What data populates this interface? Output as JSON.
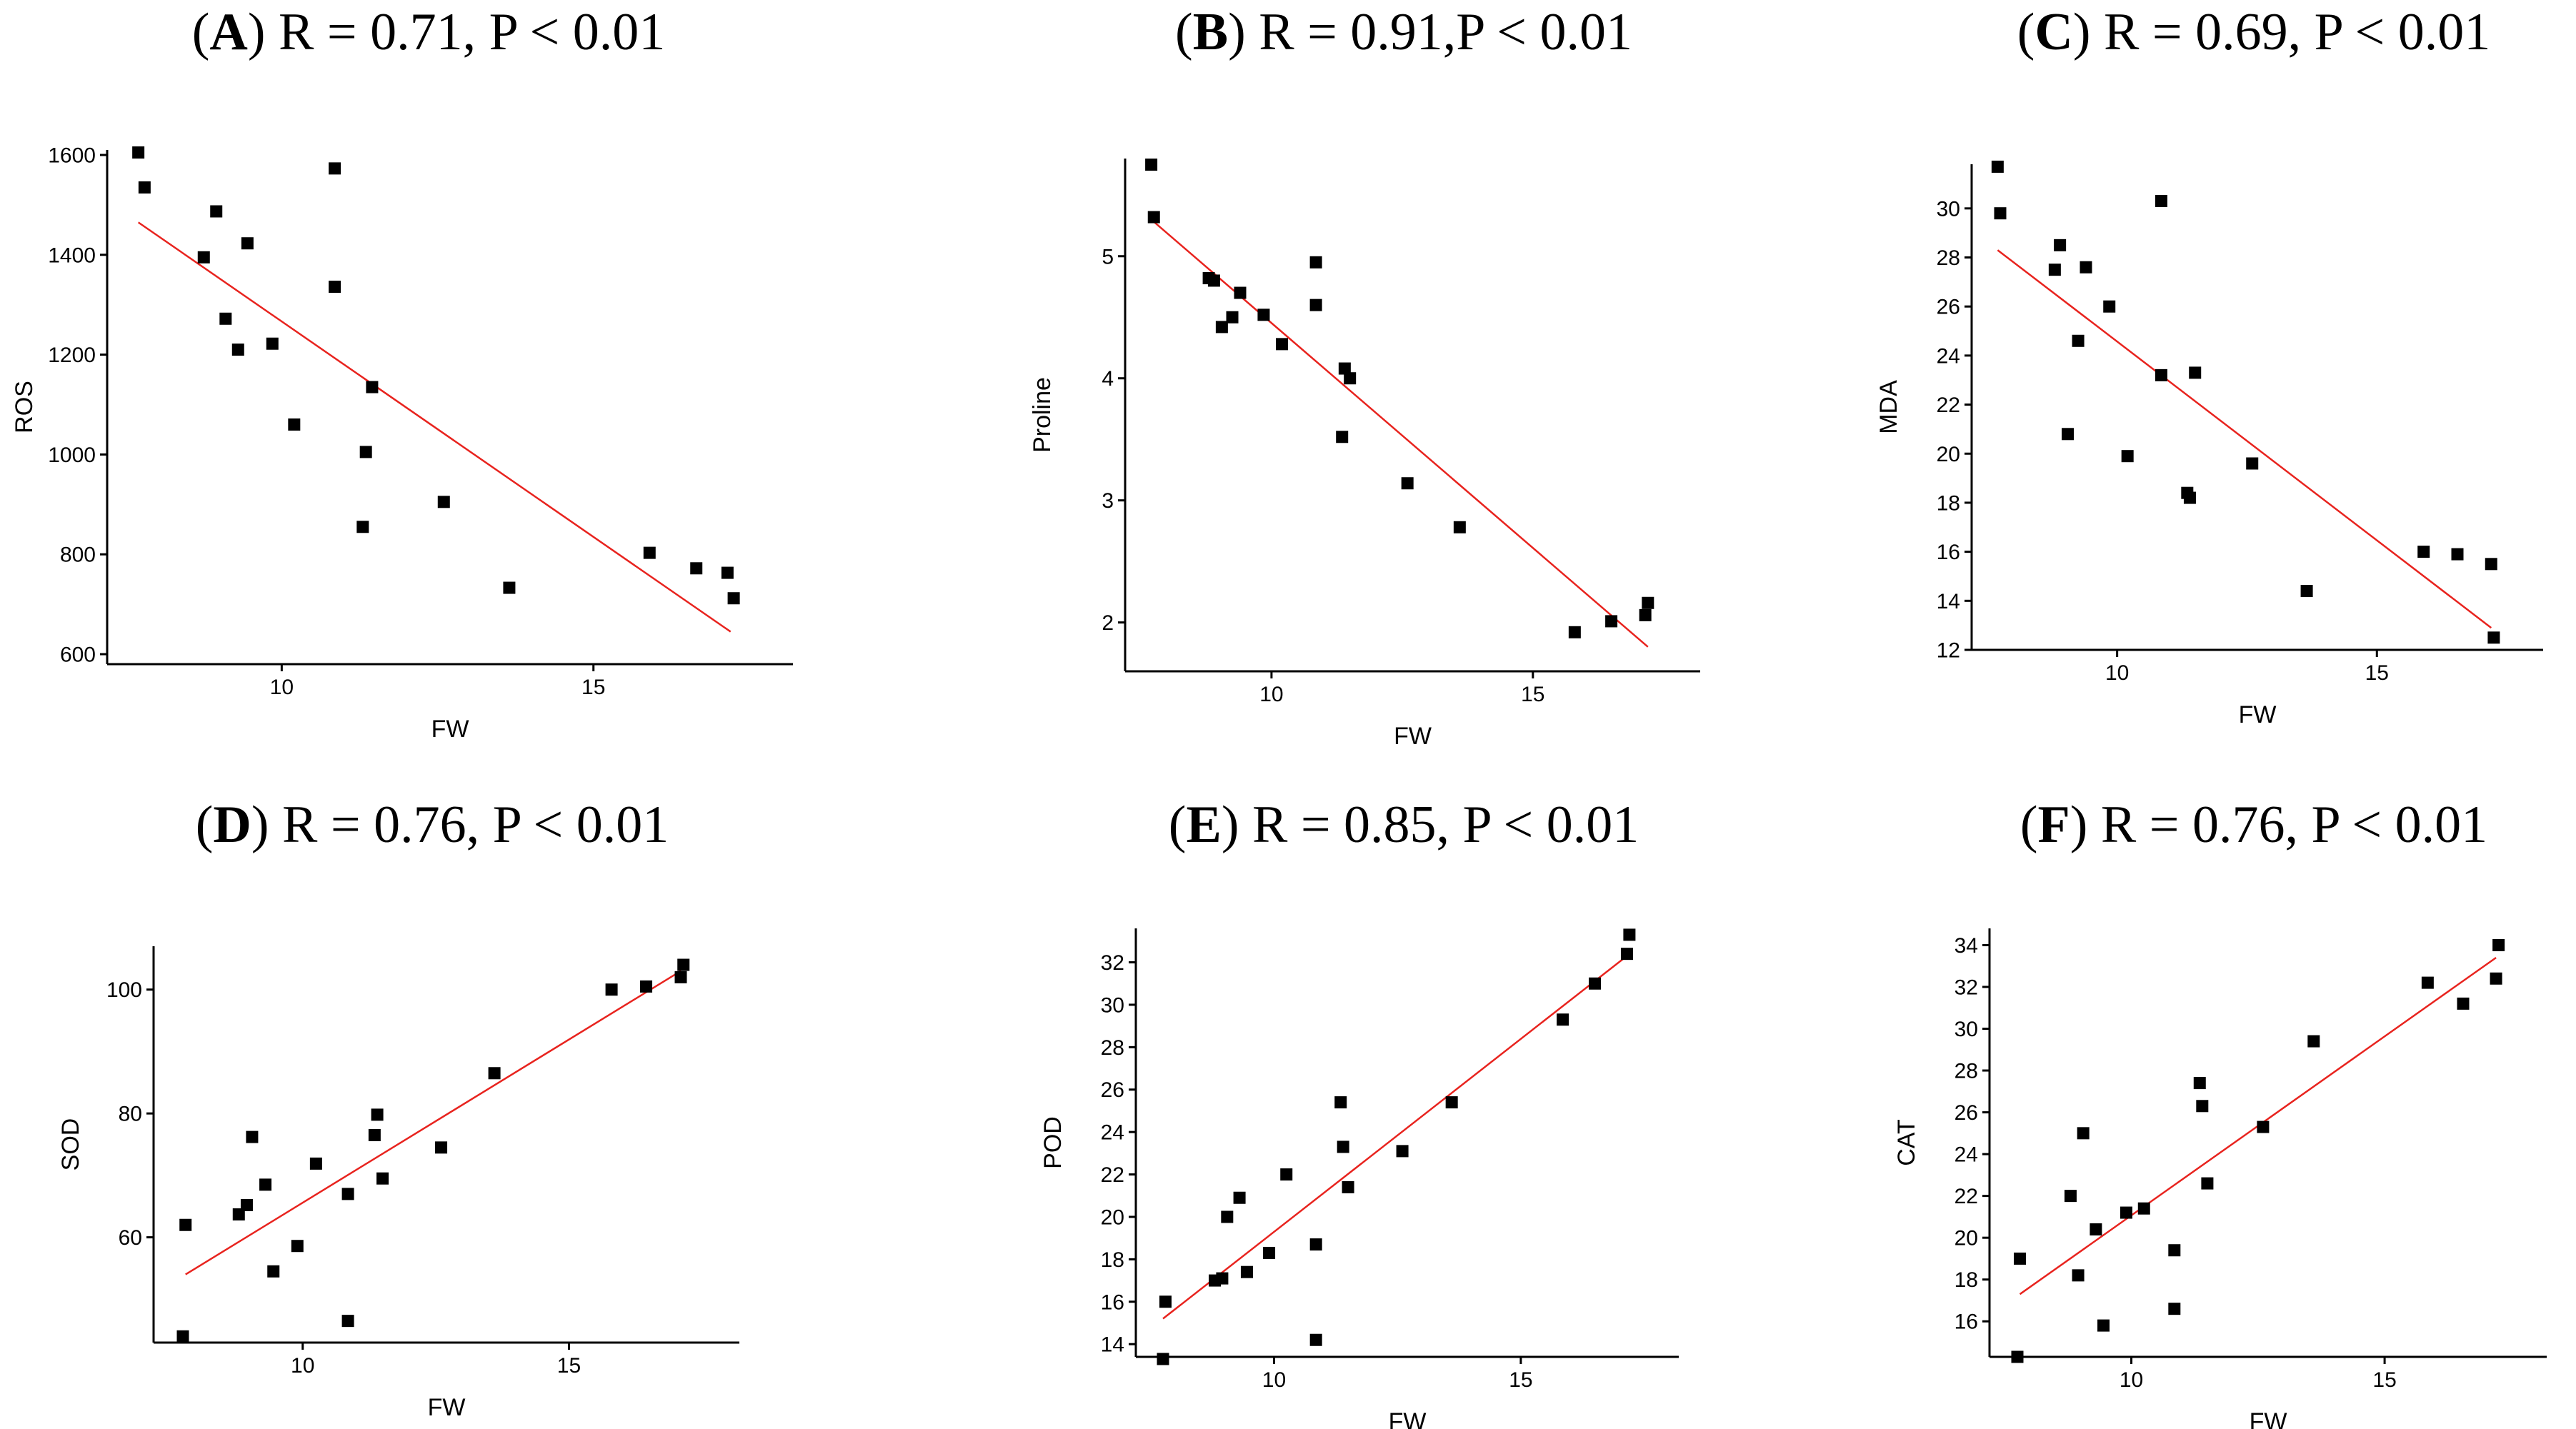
{
  "colors": {
    "point": "#000000",
    "fit": "#e8231e",
    "axis": "#000000"
  },
  "chart_data": [
    {
      "id": "A",
      "letter": "A",
      "stats": "R = 0.71, P < 0.01",
      "type": "scatter",
      "xlabel": "FW",
      "ylabel": "ROS",
      "xlim": [
        7.2,
        18.2
      ],
      "ylim": [
        580,
        1610
      ],
      "xticks": [
        10,
        15
      ],
      "yticks": [
        600,
        800,
        1000,
        1200,
        1400,
        1600
      ],
      "points": [
        [
          7.7,
          1605
        ],
        [
          7.8,
          1535
        ],
        [
          8.75,
          1395
        ],
        [
          8.95,
          1487
        ],
        [
          9.1,
          1272
        ],
        [
          9.3,
          1210
        ],
        [
          9.45,
          1423
        ],
        [
          9.85,
          1222
        ],
        [
          10.2,
          1060
        ],
        [
          10.85,
          1573
        ],
        [
          10.85,
          1336
        ],
        [
          11.3,
          855
        ],
        [
          11.35,
          1005
        ],
        [
          11.45,
          1135
        ],
        [
          12.6,
          905
        ],
        [
          13.65,
          733
        ],
        [
          15.9,
          803
        ],
        [
          16.65,
          772
        ],
        [
          17.15,
          763
        ],
        [
          17.25,
          712
        ]
      ],
      "fit": [
        [
          7.7,
          1465
        ],
        [
          17.2,
          645
        ]
      ]
    },
    {
      "id": "B",
      "letter": "B",
      "stats": "R = 0.91,P < 0.01",
      "type": "scatter",
      "xlabel": "FW",
      "ylabel": "Proline",
      "xlim": [
        7.2,
        18.2
      ],
      "ylim": [
        1.6,
        5.8
      ],
      "xticks": [
        10,
        15
      ],
      "yticks": [
        2,
        3,
        4,
        5
      ],
      "points": [
        [
          7.7,
          5.75
        ],
        [
          7.75,
          5.32
        ],
        [
          8.8,
          4.82
        ],
        [
          8.9,
          4.8
        ],
        [
          9.05,
          4.42
        ],
        [
          9.25,
          4.5
        ],
        [
          9.4,
          4.7
        ],
        [
          9.85,
          4.52
        ],
        [
          10.2,
          4.28
        ],
        [
          10.85,
          4.95
        ],
        [
          10.85,
          4.6
        ],
        [
          11.35,
          3.52
        ],
        [
          11.4,
          4.08
        ],
        [
          11.5,
          4.0
        ],
        [
          12.6,
          3.14
        ],
        [
          13.6,
          2.78
        ],
        [
          15.8,
          1.92
        ],
        [
          16.5,
          2.01
        ],
        [
          17.15,
          2.06
        ],
        [
          17.2,
          2.16
        ]
      ],
      "fit": [
        [
          7.7,
          5.3
        ],
        [
          17.2,
          1.8
        ]
      ]
    },
    {
      "id": "C",
      "letter": "C",
      "stats": "R = 0.69, P < 0.01",
      "type": "scatter",
      "xlabel": "FW",
      "ylabel": "MDA",
      "xlim": [
        7.2,
        18.2
      ],
      "ylim": [
        12.0,
        31.8
      ],
      "xticks": [
        10,
        15
      ],
      "yticks": [
        12,
        14,
        16,
        18,
        20,
        22,
        24,
        26,
        28,
        30
      ],
      "points": [
        [
          7.7,
          31.7
        ],
        [
          7.75,
          29.8
        ],
        [
          8.8,
          27.5
        ],
        [
          8.9,
          28.5
        ],
        [
          9.05,
          20.8
        ],
        [
          9.25,
          24.6
        ],
        [
          9.4,
          27.6
        ],
        [
          9.85,
          26.0
        ],
        [
          10.2,
          19.9
        ],
        [
          10.85,
          30.3
        ],
        [
          10.85,
          23.2
        ],
        [
          11.35,
          18.4
        ],
        [
          11.4,
          18.2
        ],
        [
          11.5,
          23.3
        ],
        [
          12.6,
          19.6
        ],
        [
          13.65,
          14.4
        ],
        [
          15.9,
          16.0
        ],
        [
          16.55,
          15.9
        ],
        [
          17.2,
          15.5
        ],
        [
          17.25,
          12.5
        ]
      ],
      "fit": [
        [
          7.7,
          28.3
        ],
        [
          17.2,
          12.9
        ]
      ]
    },
    {
      "id": "D",
      "letter": "D",
      "stats": "R = 0.76, P < 0.01",
      "type": "scatter",
      "xlabel": "FW",
      "ylabel": "SOD",
      "xlim": [
        7.2,
        18.2
      ],
      "ylim": [
        43,
        107
      ],
      "xticks": [
        10,
        15
      ],
      "yticks": [
        60,
        80,
        100
      ],
      "points": [
        [
          7.75,
          44
        ],
        [
          7.8,
          62
        ],
        [
          8.8,
          63.7
        ],
        [
          8.95,
          65.2
        ],
        [
          9.05,
          76.2
        ],
        [
          9.3,
          68.5
        ],
        [
          9.45,
          54.5
        ],
        [
          9.9,
          58.6
        ],
        [
          10.25,
          71.9
        ],
        [
          10.85,
          67.0
        ],
        [
          10.85,
          46.5
        ],
        [
          11.35,
          76.5
        ],
        [
          11.4,
          79.8
        ],
        [
          11.5,
          69.5
        ],
        [
          12.6,
          74.5
        ],
        [
          13.6,
          86.5
        ],
        [
          15.8,
          100
        ],
        [
          16.45,
          100.5
        ],
        [
          17.1,
          102
        ],
        [
          17.15,
          104
        ]
      ],
      "fit": [
        [
          7.8,
          54
        ],
        [
          17.1,
          103
        ]
      ]
    },
    {
      "id": "E",
      "letter": "E",
      "stats": "R = 0.85, P < 0.01",
      "type": "scatter",
      "xlabel": "FW",
      "ylabel": "POD",
      "xlim": [
        7.2,
        18.2
      ],
      "ylim": [
        13.4,
        33.6
      ],
      "xticks": [
        10,
        15
      ],
      "yticks": [
        14,
        16,
        18,
        20,
        22,
        24,
        26,
        28,
        30,
        32
      ],
      "points": [
        [
          7.75,
          13.3
        ],
        [
          7.8,
          16.0
        ],
        [
          8.8,
          17.0
        ],
        [
          8.95,
          17.1
        ],
        [
          9.05,
          20.0
        ],
        [
          9.3,
          20.9
        ],
        [
          9.45,
          17.4
        ],
        [
          9.9,
          18.3
        ],
        [
          10.25,
          22.0
        ],
        [
          10.85,
          18.7
        ],
        [
          10.85,
          14.2
        ],
        [
          11.35,
          25.4
        ],
        [
          11.4,
          23.3
        ],
        [
          11.5,
          21.4
        ],
        [
          12.6,
          23.1
        ],
        [
          13.6,
          25.4
        ],
        [
          15.85,
          29.3
        ],
        [
          16.5,
          31.0
        ],
        [
          17.15,
          32.4
        ],
        [
          17.2,
          33.3
        ]
      ],
      "fit": [
        [
          7.75,
          15.2
        ],
        [
          17.15,
          32.3
        ]
      ]
    },
    {
      "id": "F",
      "letter": "F",
      "stats": "R = 0.76, P < 0.01",
      "type": "scatter",
      "xlabel": "FW",
      "ylabel": "CAT",
      "xlim": [
        7.2,
        18.2
      ],
      "ylim": [
        14.3,
        34.8
      ],
      "xticks": [
        10,
        15
      ],
      "yticks": [
        16,
        18,
        20,
        22,
        24,
        26,
        28,
        30,
        32,
        34
      ],
      "points": [
        [
          7.75,
          14.3
        ],
        [
          7.8,
          19.0
        ],
        [
          8.8,
          22.0
        ],
        [
          8.95,
          18.2
        ],
        [
          9.05,
          25.0
        ],
        [
          9.3,
          20.4
        ],
        [
          9.45,
          15.8
        ],
        [
          9.9,
          21.2
        ],
        [
          10.25,
          21.4
        ],
        [
          10.85,
          19.4
        ],
        [
          10.85,
          16.6
        ],
        [
          11.35,
          27.4
        ],
        [
          11.4,
          26.3
        ],
        [
          11.5,
          22.6
        ],
        [
          12.6,
          25.3
        ],
        [
          13.6,
          29.4
        ],
        [
          15.85,
          32.2
        ],
        [
          16.55,
          31.2
        ],
        [
          17.2,
          32.4
        ],
        [
          17.25,
          34.0
        ]
      ],
      "fit": [
        [
          7.8,
          17.3
        ],
        [
          17.2,
          33.4
        ]
      ]
    }
  ]
}
